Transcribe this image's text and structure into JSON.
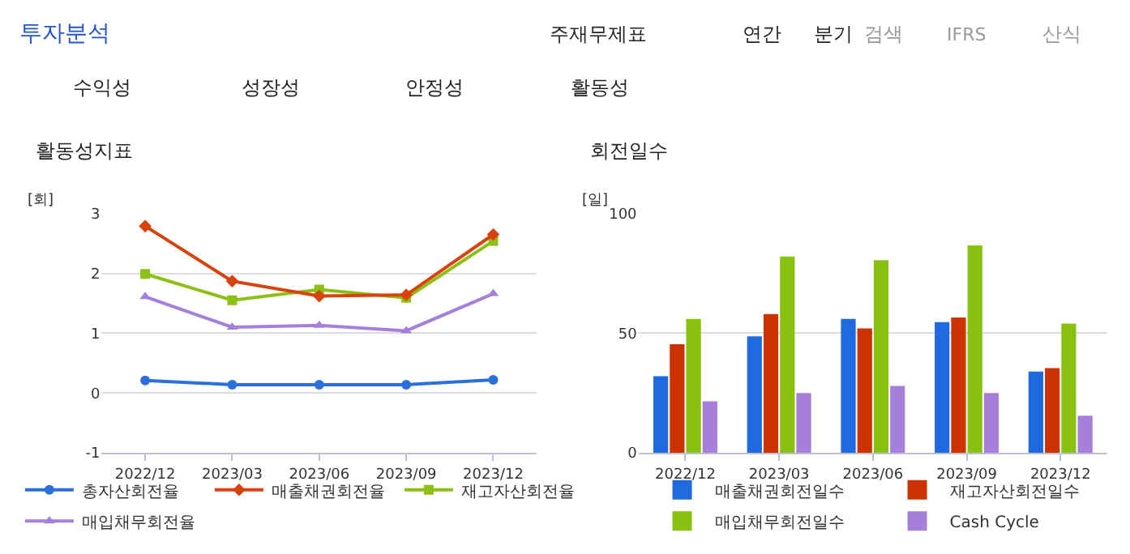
{
  "chart_data": [
    {
      "type": "other",
      "annotations": [
        "투자분석",
        "주재무제표",
        "연간",
        "분기",
        "검색",
        "IFRS",
        "산식",
        "수익성",
        "성장성",
        "안정성",
        "활동성"
      ]
    },
    {
      "type": "line",
      "title": "활동성지표",
      "ylabel": "[회]",
      "categories": [
        "2022/12",
        "2023/03",
        "2023/06",
        "2023/09",
        "2023/12"
      ],
      "ylim": [
        -1,
        3
      ],
      "yticks": [
        -1,
        0,
        1,
        2,
        3
      ],
      "grid": "y",
      "legend": "bottom",
      "line_style": "solid",
      "series": [
        {
          "name": "총자산회전율",
          "color": "#2a6fdb",
          "marker": "circle",
          "values": [
            0.21,
            0.14,
            0.14,
            0.14,
            0.22
          ]
        },
        {
          "name": "매출채권회전율",
          "color": "#d9420b",
          "marker": "diamond",
          "values": [
            2.79,
            1.87,
            1.62,
            1.64,
            2.65
          ]
        },
        {
          "name": "재고자산회전율",
          "color": "#8cc014",
          "marker": "square",
          "values": [
            1.99,
            1.55,
            1.73,
            1.59,
            2.54
          ]
        },
        {
          "name": "매입채무회전율",
          "color": "#a57fdc",
          "marker": "triangle",
          "values": [
            1.61,
            1.1,
            1.13,
            1.04,
            1.66
          ]
        }
      ]
    },
    {
      "type": "bar",
      "title": "회전일수",
      "ylabel": "[일]",
      "categories": [
        "2022/12",
        "2023/03",
        "2023/06",
        "2023/09",
        "2023/12"
      ],
      "ylim": [
        0,
        100
      ],
      "yticks": [
        0,
        50,
        100
      ],
      "grid": "y",
      "legend": "bottom",
      "series": [
        {
          "name": "매출채권회전일수",
          "color": "#1f6ae0",
          "values": [
            32,
            48.7,
            56,
            54.6,
            34
          ]
        },
        {
          "name": "재고자산회전일수",
          "color": "#cc3300",
          "values": [
            45.4,
            58,
            52,
            56.6,
            35.4
          ]
        },
        {
          "name": "매입채무회전일수",
          "color": "#88c10f",
          "values": [
            56,
            82,
            80.5,
            86.7,
            54
          ]
        },
        {
          "name": "Cash Cycle",
          "color": "#a67fdc",
          "values": [
            21.5,
            25,
            28,
            25,
            15.5
          ]
        }
      ]
    }
  ]
}
